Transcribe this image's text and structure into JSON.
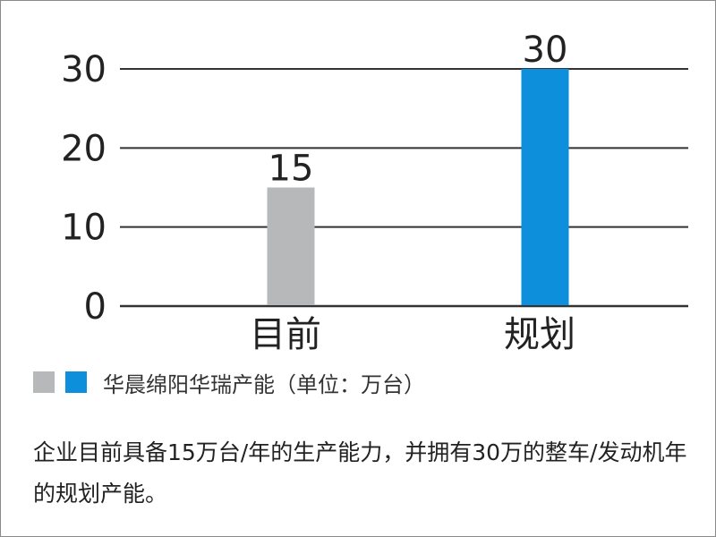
{
  "chart_data": {
    "type": "bar",
    "categories": [
      "目前",
      "规划"
    ],
    "values": [
      15,
      30
    ],
    "colors": [
      "#b7b8ba",
      "#0e8fdb"
    ],
    "yticks": [
      0,
      10,
      20,
      30
    ],
    "ylim": [
      0,
      30
    ],
    "grid": true,
    "data_labels": [
      "15",
      "30"
    ],
    "legend": {
      "position": "bottom-left",
      "label": "华晨绵阳华瑞产能（单位：万台）"
    }
  },
  "note": "企业目前具备15万台/年的生产能力，并拥有30万的整车/发动机年的规划产能。",
  "colors": {
    "gridline": "#333333",
    "text": "#222222"
  }
}
